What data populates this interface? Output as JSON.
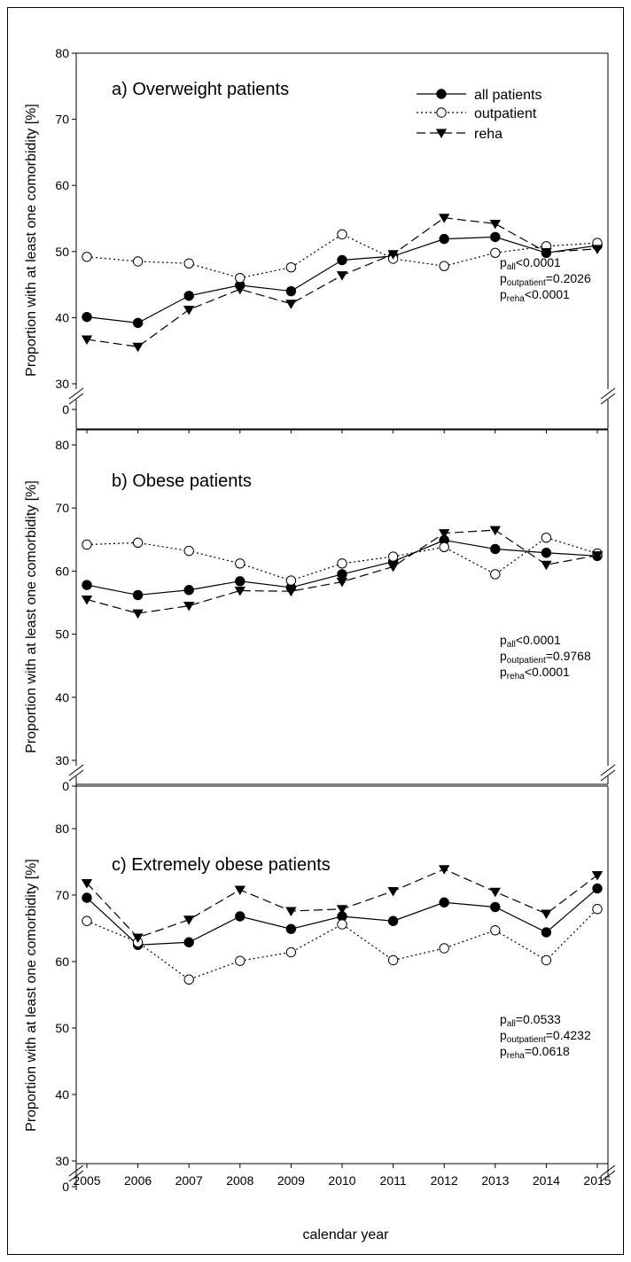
{
  "figure": {
    "xlabel": "calendar year",
    "legend": {
      "items": [
        {
          "label": "all patients",
          "series": "all"
        },
        {
          "label": "outpatient",
          "series": "outpatient"
        },
        {
          "label": "reha",
          "series": "reha"
        }
      ],
      "placement": "top-right (panel a only)"
    }
  },
  "chart_data": [
    {
      "type": "line",
      "title": "a) Overweight patients",
      "ylabel": "Proportion with at least one comorbidity [%]",
      "xlabel": "",
      "x": [
        2005,
        2006,
        2007,
        2008,
        2009,
        2010,
        2011,
        2012,
        2013,
        2014,
        2015
      ],
      "ylim": [
        30,
        80
      ],
      "yticks": [
        0,
        30,
        40,
        50,
        60,
        70,
        80
      ],
      "axis_break": "between 0 and 30",
      "series": [
        {
          "name": "all patients",
          "style": "solid, filled circle",
          "values": [
            40.1,
            39.2,
            43.3,
            44.9,
            44.0,
            48.7,
            49.3,
            51.9,
            52.2,
            49.8,
            50.9
          ]
        },
        {
          "name": "outpatient",
          "style": "dotted, open circle",
          "values": [
            49.2,
            48.5,
            48.2,
            46.0,
            47.6,
            52.6,
            48.9,
            47.8,
            49.8,
            50.8,
            51.3
          ]
        },
        {
          "name": "reha",
          "style": "dashed, filled triangle down",
          "values": [
            36.7,
            35.6,
            41.2,
            44.3,
            42.1,
            46.4,
            49.6,
            55.1,
            54.2,
            49.9,
            50.4
          ]
        }
      ],
      "annotations": {
        "p_all": {
          "sub": "all",
          "text": "<0.0001"
        },
        "p_outpatient": {
          "sub": "outpatient",
          "text": "=0.2026"
        },
        "p_reha": {
          "sub": "reha",
          "text": "<0.0001"
        }
      },
      "grid": false
    },
    {
      "type": "line",
      "title": "b) Obese patients",
      "ylabel": "Proportion with at least one comorbidity [%]",
      "xlabel": "",
      "x": [
        2005,
        2006,
        2007,
        2008,
        2009,
        2010,
        2011,
        2012,
        2013,
        2014,
        2015
      ],
      "ylim": [
        30,
        80
      ],
      "yticks": [
        0,
        30,
        40,
        50,
        60,
        70,
        80
      ],
      "axis_break": "between 0 and 30",
      "series": [
        {
          "name": "all patients",
          "style": "solid, filled circle",
          "values": [
            57.8,
            56.2,
            57.0,
            58.4,
            57.4,
            59.5,
            61.5,
            64.9,
            63.5,
            62.9,
            62.4
          ]
        },
        {
          "name": "outpatient",
          "style": "dotted, open circle",
          "values": [
            64.2,
            64.5,
            63.2,
            61.2,
            58.5,
            61.2,
            62.3,
            63.8,
            59.5,
            65.3,
            62.8
          ]
        },
        {
          "name": "reha",
          "style": "dashed, filled triangle down",
          "values": [
            55.5,
            53.3,
            54.5,
            56.9,
            56.8,
            58.3,
            60.7,
            66.0,
            66.5,
            61.0,
            62.5
          ]
        }
      ],
      "annotations": {
        "p_all": {
          "sub": "all",
          "text": "<0.0001"
        },
        "p_outpatient": {
          "sub": "outpatient",
          "text": "=0.9768"
        },
        "p_reha": {
          "sub": "reha",
          "text": "<0.0001"
        }
      },
      "grid": false
    },
    {
      "type": "line",
      "title": "c) Extremely obese patients",
      "ylabel": "Proportion with at least one comorbidity [%]",
      "xlabel": "calendar year",
      "x": [
        2005,
        2006,
        2007,
        2008,
        2009,
        2010,
        2011,
        2012,
        2013,
        2014,
        2015
      ],
      "ylim": [
        30,
        80
      ],
      "yticks": [
        0,
        30,
        40,
        50,
        60,
        70,
        80
      ],
      "axis_break": "between 0 and 30",
      "series": [
        {
          "name": "all patients",
          "style": "solid, filled circle",
          "values": [
            69.6,
            62.5,
            62.9,
            66.8,
            64.9,
            66.8,
            66.1,
            68.9,
            68.2,
            64.4,
            71.0
          ]
        },
        {
          "name": "outpatient",
          "style": "dotted, open circle",
          "values": [
            66.1,
            62.9,
            57.3,
            60.1,
            61.4,
            65.6,
            60.2,
            62.0,
            64.7,
            60.2,
            67.9
          ]
        },
        {
          "name": "reha",
          "style": "dashed, filled triangle down",
          "values": [
            71.8,
            63.6,
            66.3,
            70.8,
            67.6,
            67.9,
            70.6,
            73.9,
            70.5,
            67.2,
            73.0
          ]
        }
      ],
      "annotations": {
        "p_all": {
          "sub": "all",
          "text": "=0.0533"
        },
        "p_outpatient": {
          "sub": "outpatient",
          "text": "=0.4232"
        },
        "p_reha": {
          "sub": "reha",
          "text": "=0.0618"
        }
      },
      "grid": false
    }
  ]
}
